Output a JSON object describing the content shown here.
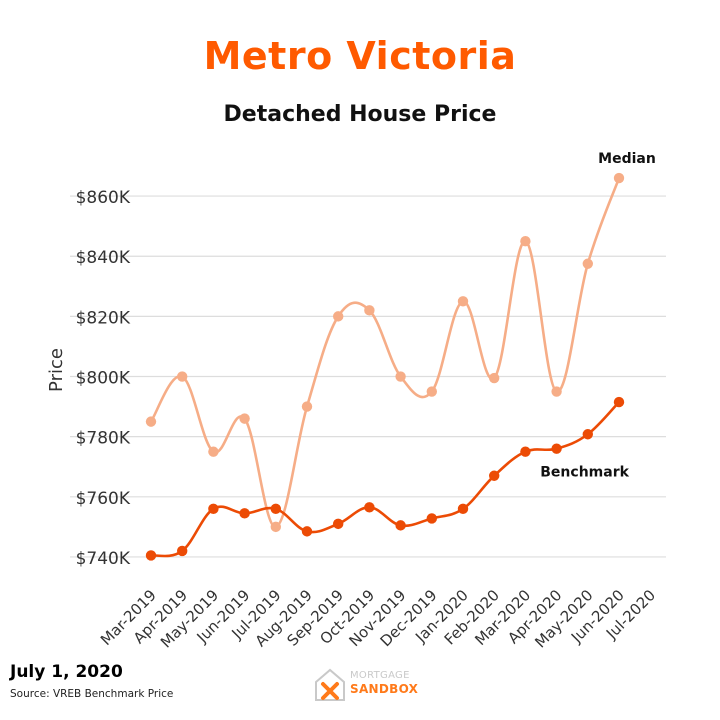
{
  "colors": {
    "title": "#ff5a00",
    "median": "#f6ad87",
    "benchmark": "#ec4b05",
    "grid": "#dddddd",
    "text": "#333333"
  },
  "footer": {
    "date": "July 1, 2020",
    "source": "Source: VREB Benchmark Price",
    "logo_line1": "MORTGAGE",
    "logo_line2": "SANDBOX",
    "logo_icon": "house-cross-icon"
  },
  "chart_data": {
    "type": "line",
    "title": "Metro Victoria",
    "subtitle": "Detached House Price",
    "xlabel": "",
    "ylabel": "Price",
    "ylim": [
      732000,
      872000
    ],
    "yticks": [
      740000,
      760000,
      780000,
      800000,
      820000,
      840000,
      860000
    ],
    "ytick_labels": [
      "$740K",
      "$760K",
      "$780K",
      "$800K",
      "$820K",
      "$840K",
      "$860K"
    ],
    "categories": [
      "Mar-2019",
      "Apr-2019",
      "May-2019",
      "Jun-2019",
      "Jul-2019",
      "Aug-2019",
      "Sep-2019",
      "Oct-2019",
      "Nov-2019",
      "Dec-2019",
      "Jan-2020",
      "Feb-2020",
      "Mar-2020",
      "Apr-2020",
      "May-2020",
      "Jun-2020",
      "Jul-2020"
    ],
    "series": [
      {
        "name": "Median",
        "values": [
          785000,
          800000,
          775000,
          786000,
          750000,
          790000,
          820000,
          822000,
          800000,
          795000,
          825000,
          799500,
          845000,
          795000,
          837500,
          866000,
          null
        ]
      },
      {
        "name": "Benchmark",
        "values": [
          740500,
          742000,
          756000,
          754500,
          756000,
          748500,
          751000,
          756500,
          750500,
          752800,
          756000,
          767000,
          775000,
          776000,
          780800,
          791500,
          null
        ]
      }
    ]
  }
}
